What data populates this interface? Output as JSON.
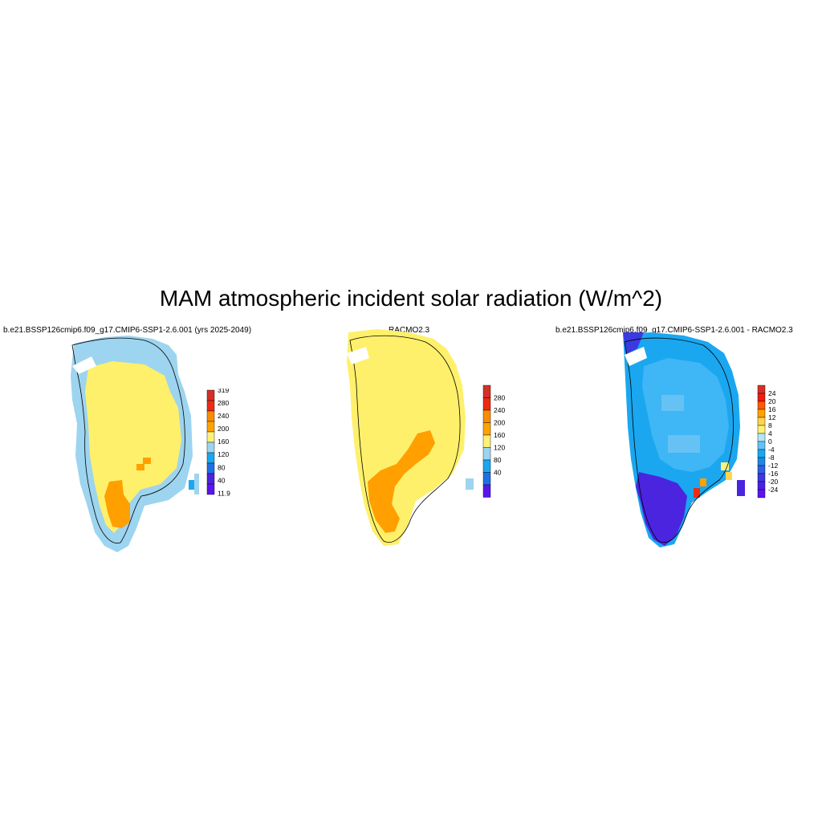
{
  "title": "MAM atmospheric incident solar radiation (W/m^2)",
  "panels": [
    {
      "title": "b.e21.BSSP126cmip6.f09_g17.CMIP6-SSP1-2.6.001 (yrs 2025-2049)",
      "colorbar": {
        "labels": [
          "319",
          "280",
          "240",
          "200",
          "160",
          "120",
          "80",
          "40",
          "11.9"
        ],
        "colors": [
          "#d62f27",
          "#ed2b14",
          "#fb8c00",
          "#ffa200",
          "#fff176",
          "#9dd4ef",
          "#1aa7f0",
          "#1f6fe6",
          "#4b24e0",
          "#5a14f0"
        ]
      },
      "field_colors": {
        "ocean_edge": "#9dd4ef",
        "interior": "#fff06b",
        "south": "#ff9f00",
        "blue": "#1aa7f0"
      }
    },
    {
      "title": "RACMO2.3",
      "colorbar": {
        "labels": [
          "280",
          "240",
          "200",
          "160",
          "120",
          "80",
          "40"
        ],
        "colors": [
          "#d62f27",
          "#ed2b14",
          "#fb8c00",
          "#ffa200",
          "#fff176",
          "#9dd4ef",
          "#1aa7f0",
          "#1f6fe6",
          "#5a14f0"
        ]
      },
      "field_colors": {
        "edge": "#fff06b",
        "interior": "#fff06b",
        "south": "#ff9f00"
      }
    },
    {
      "title": "b.e21.BSSP126cmip6.f09_g17.CMIP6-SSP1-2.6.001 - RACMO2.3",
      "colorbar": {
        "labels": [
          "24",
          "20",
          "16",
          "12",
          "8",
          "4",
          "0",
          "-4",
          "-8",
          "-12",
          "-16",
          "-20",
          "-24"
        ],
        "colors": [
          "#d62f27",
          "#ed1c14",
          "#ff5a00",
          "#ffa200",
          "#ffd54f",
          "#fff176",
          "#b3e5fc",
          "#66c2f5",
          "#1aa7f0",
          "#1e88e5",
          "#2f5fe0",
          "#3a3ae0",
          "#4a20e8",
          "#5a14f0"
        ]
      },
      "field_colors": {
        "interior": "#3fb6f5",
        "edge": "#1aa7f0",
        "south": "#4b24e0",
        "warm": "#ffa200"
      }
    }
  ]
}
